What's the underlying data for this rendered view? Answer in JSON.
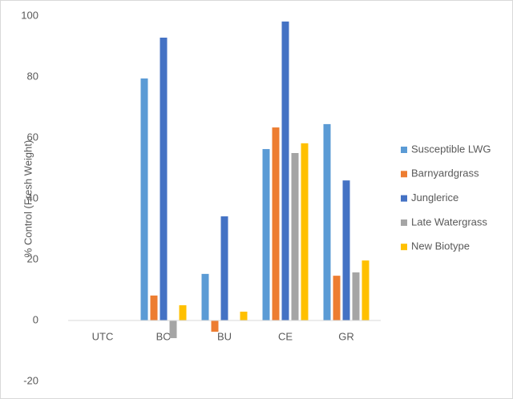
{
  "chart_data": {
    "type": "bar",
    "y_axis_label": "% Control (Fresh Weight)",
    "categories": [
      "UTC",
      "BO",
      "BU",
      "CE",
      "GR"
    ],
    "series": [
      {
        "name": "Susceptible LWG",
        "color": "#5b9bd5",
        "values": [
          0,
          79.5,
          15.3,
          56.3,
          64.5
        ]
      },
      {
        "name": "Barnyardgrass",
        "color": "#ed7d31",
        "values": [
          0,
          8.2,
          -3.7,
          63.4,
          14.7
        ]
      },
      {
        "name": "Junglerice",
        "color": "#4472c4",
        "values": [
          0,
          92.9,
          34.2,
          98.2,
          46
        ]
      },
      {
        "name": "Late Watergrass",
        "color": "#a5a5a5",
        "values": [
          0,
          -5.8,
          0,
          55,
          15.8
        ]
      },
      {
        "name": "New Biotype",
        "color": "#ffc000",
        "values": [
          0,
          5,
          2.9,
          58.2,
          19.7
        ]
      }
    ],
    "ylim": [
      -20,
      100
    ],
    "yticks": [
      -20,
      0,
      20,
      40,
      60,
      80,
      100
    ],
    "grid": false,
    "legend": "right"
  }
}
